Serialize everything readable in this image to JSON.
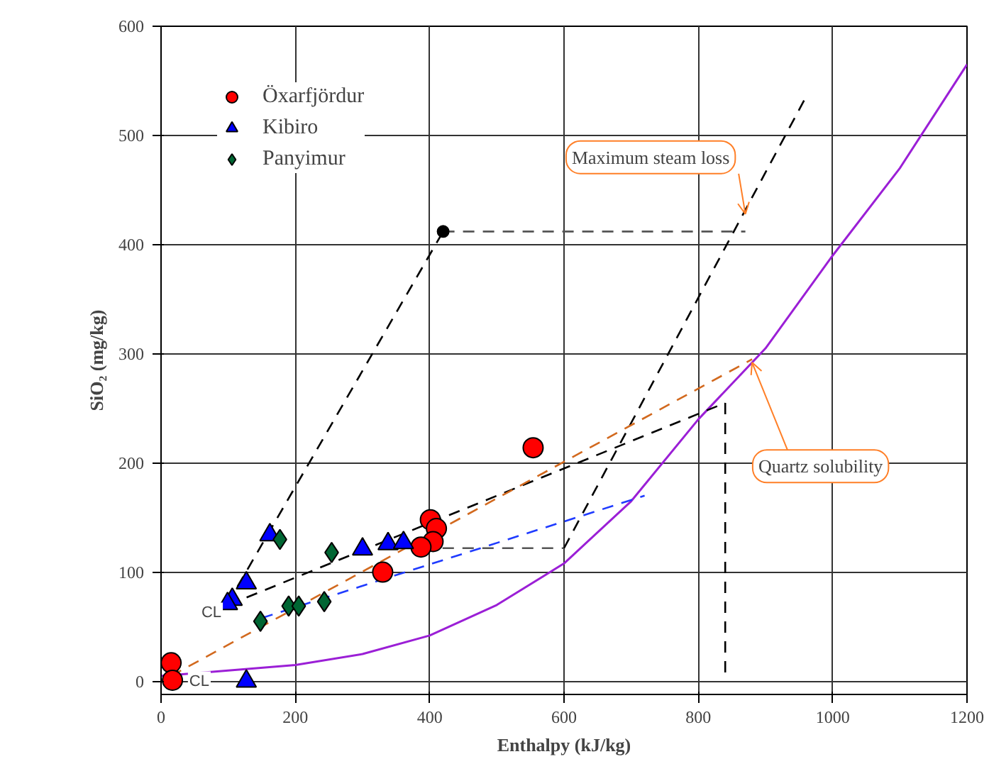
{
  "chart_data": {
    "type": "scatter",
    "xlabel": "Enthalpy (kJ/kg)",
    "ylabel": "SiO₂ (mg/kg)",
    "xlim": [
      0,
      1200
    ],
    "ylim": [
      -12,
      600
    ],
    "xticks": [
      0,
      200,
      400,
      600,
      800,
      1000,
      1200
    ],
    "yticks": [
      0,
      100,
      200,
      300,
      400,
      500,
      600
    ],
    "grid": true,
    "legend": "top left",
    "series": [
      {
        "type": "line",
        "color": "#9b1fd6",
        "line_style": "solid",
        "x": [
          0,
          100,
          200,
          300,
          400,
          500,
          600,
          700,
          800,
          900,
          1000,
          1100,
          1200
        ],
        "values": [
          5,
          10,
          15,
          25,
          42,
          70,
          108,
          165,
          240,
          305,
          390,
          470,
          565
        ]
      },
      {
        "type": "line",
        "color": "#000000",
        "line_style": "dashed",
        "x": [
          99,
          420
        ],
        "values": [
          71,
          412
        ]
      },
      {
        "type": "line",
        "color": "#555555",
        "line_style": "dashed",
        "x": [
          420,
          870
        ],
        "values": [
          412,
          412
        ]
      },
      {
        "type": "line",
        "color": "#555555",
        "line_style": "dashed",
        "x": [
          360,
          600
        ],
        "values": [
          122,
          122
        ]
      },
      {
        "type": "line",
        "color": "#000000",
        "line_style": "dashed",
        "x": [
          600,
          960
        ],
        "values": [
          122,
          535
        ]
      },
      {
        "type": "line",
        "color": "#000000",
        "line_style": "dashed",
        "x": [
          100,
          840
        ],
        "values": [
          70,
          255
        ]
      },
      {
        "type": "line",
        "color": "#000000",
        "line_style": "dashed",
        "x": [
          840,
          840
        ],
        "values": [
          255,
          8
        ]
      },
      {
        "type": "line",
        "color": "#1f3bff",
        "line_style": "dashed",
        "x": [
          150,
          720
        ],
        "values": [
          58,
          170
        ]
      },
      {
        "type": "line",
        "color": "#d2691e",
        "line_style": "dashed",
        "x": [
          15,
          880
        ],
        "values": [
          5,
          295
        ]
      },
      {
        "color": "#000000",
        "marker": "circle",
        "x": [
          420
        ],
        "values": [
          412
        ]
      },
      {
        "name": "Öxarfjördur",
        "color": "#ff0000",
        "marker": "circle",
        "x": [
          15,
          17,
          330,
          401,
          410,
          405,
          387,
          554
        ],
        "values": [
          17,
          1,
          100,
          148,
          140,
          128,
          123,
          214
        ]
      },
      {
        "name": "Kibiro",
        "color": "#0000ff",
        "marker": "triangle",
        "x": [
          162,
          127,
          106,
          99,
          300,
          338,
          361,
          127
        ],
        "values": [
          134,
          90,
          75,
          71,
          121,
          126,
          127,
          0
        ]
      },
      {
        "name": "Panyimur",
        "color": "#006633",
        "marker": "diamond",
        "x": [
          177,
          254,
          148,
          190,
          205,
          243
        ],
        "values": [
          130,
          118,
          55,
          69,
          69,
          73
        ]
      }
    ],
    "annotations": [
      {
        "text": "Maximum steam loss",
        "x": 870,
        "y": 428
      },
      {
        "text": "Quartz solubility",
        "x": 880,
        "y": 292
      },
      {
        "text": "CL",
        "x": 92,
        "y": 63
      },
      {
        "text": "CL",
        "x": 40,
        "y": 0
      }
    ]
  }
}
